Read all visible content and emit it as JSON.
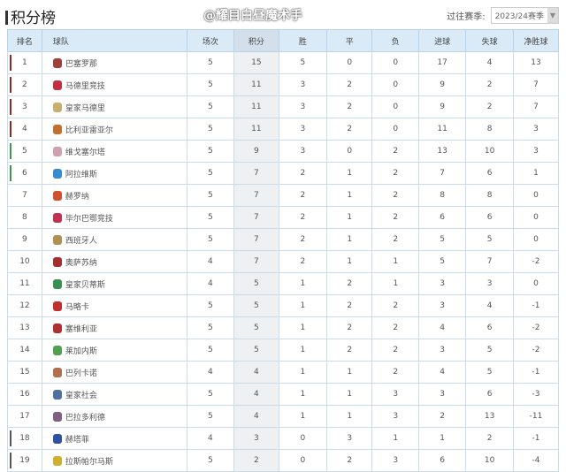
{
  "title": "积分榜",
  "season": {
    "label": "过往赛季:",
    "selected": "2023/24赛季"
  },
  "columns": [
    "排名",
    "球队",
    "场次",
    "积分",
    "胜",
    "平",
    "负",
    "进球",
    "失球",
    "净胜球"
  ],
  "zone_colors": {
    "champions": "#8b2a1e",
    "europa": "#3a9a4a",
    "relegation": "#555555"
  },
  "rows": [
    {
      "rank": "1",
      "team": "巴塞罗那",
      "p": "5",
      "pts": "15",
      "w": "5",
      "d": "0",
      "l": "0",
      "gf": "17",
      "ga": "4",
      "gd": "13",
      "zone": "champions",
      "logo": "#a0403a"
    },
    {
      "rank": "2",
      "team": "马德里竞技",
      "p": "5",
      "pts": "11",
      "w": "3",
      "d": "2",
      "l": "0",
      "gf": "9",
      "ga": "2",
      "gd": "7",
      "zone": "champions",
      "logo": "#c03040"
    },
    {
      "rank": "3",
      "team": "皇家马德里",
      "p": "5",
      "pts": "11",
      "w": "3",
      "d": "2",
      "l": "0",
      "gf": "9",
      "ga": "2",
      "gd": "7",
      "zone": "champions",
      "logo": "#c8b070"
    },
    {
      "rank": "4",
      "team": "比利亚雷亚尔",
      "p": "5",
      "pts": "11",
      "w": "3",
      "d": "2",
      "l": "0",
      "gf": "11",
      "ga": "8",
      "gd": "3",
      "zone": "champions",
      "logo": "#c07030"
    },
    {
      "rank": "5",
      "team": "维戈塞尔塔",
      "p": "5",
      "pts": "9",
      "w": "3",
      "d": "0",
      "l": "2",
      "gf": "13",
      "ga": "10",
      "gd": "3",
      "zone": "europa",
      "logo": "#d0a0b0"
    },
    {
      "rank": "6",
      "team": "阿拉维斯",
      "p": "5",
      "pts": "7",
      "w": "2",
      "d": "1",
      "l": "2",
      "gf": "7",
      "ga": "6",
      "gd": "1",
      "zone": "europa",
      "logo": "#3a8ad0"
    },
    {
      "rank": "7",
      "team": "赫罗纳",
      "p": "5",
      "pts": "7",
      "w": "2",
      "d": "1",
      "l": "2",
      "gf": "8",
      "ga": "8",
      "gd": "0",
      "zone": "",
      "logo": "#d05030"
    },
    {
      "rank": "8",
      "team": "毕尔巴鄂竞技",
      "p": "5",
      "pts": "7",
      "w": "2",
      "d": "1",
      "l": "2",
      "gf": "6",
      "ga": "6",
      "gd": "0",
      "zone": "",
      "logo": "#c03050"
    },
    {
      "rank": "9",
      "team": "西班牙人",
      "p": "5",
      "pts": "7",
      "w": "2",
      "d": "1",
      "l": "2",
      "gf": "5",
      "ga": "5",
      "gd": "0",
      "zone": "",
      "logo": "#b09050"
    },
    {
      "rank": "10",
      "team": "奥萨苏纳",
      "p": "4",
      "pts": "7",
      "w": "2",
      "d": "1",
      "l": "1",
      "gf": "5",
      "ga": "7",
      "gd": "-2",
      "zone": "",
      "logo": "#a03030"
    },
    {
      "rank": "11",
      "team": "皇家贝蒂斯",
      "p": "4",
      "pts": "5",
      "w": "1",
      "d": "2",
      "l": "1",
      "gf": "3",
      "ga": "3",
      "gd": "0",
      "zone": "",
      "logo": "#3a9050"
    },
    {
      "rank": "12",
      "team": "马略卡",
      "p": "5",
      "pts": "5",
      "w": "1",
      "d": "2",
      "l": "2",
      "gf": "3",
      "ga": "4",
      "gd": "-1",
      "zone": "",
      "logo": "#c03030"
    },
    {
      "rank": "13",
      "team": "塞维利亚",
      "p": "5",
      "pts": "5",
      "w": "1",
      "d": "2",
      "l": "2",
      "gf": "4",
      "ga": "6",
      "gd": "-2",
      "zone": "",
      "logo": "#b03030"
    },
    {
      "rank": "14",
      "team": "莱加内斯",
      "p": "5",
      "pts": "5",
      "w": "1",
      "d": "2",
      "l": "2",
      "gf": "3",
      "ga": "5",
      "gd": "-2",
      "zone": "",
      "logo": "#50a050"
    },
    {
      "rank": "15",
      "team": "巴列卡诺",
      "p": "4",
      "pts": "4",
      "w": "1",
      "d": "1",
      "l": "2",
      "gf": "4",
      "ga": "5",
      "gd": "-1",
      "zone": "",
      "logo": "#b07050"
    },
    {
      "rank": "16",
      "team": "皇家社会",
      "p": "5",
      "pts": "4",
      "w": "1",
      "d": "1",
      "l": "3",
      "gf": "3",
      "ga": "6",
      "gd": "-3",
      "zone": "",
      "logo": "#5070a0"
    },
    {
      "rank": "17",
      "team": "巴拉多利德",
      "p": "5",
      "pts": "4",
      "w": "1",
      "d": "1",
      "l": "3",
      "gf": "2",
      "ga": "13",
      "gd": "-11",
      "zone": "",
      "logo": "#806080"
    },
    {
      "rank": "18",
      "team": "赫塔菲",
      "p": "4",
      "pts": "3",
      "w": "0",
      "d": "3",
      "l": "1",
      "gf": "1",
      "ga": "2",
      "gd": "-1",
      "zone": "relegation",
      "logo": "#3050a0"
    },
    {
      "rank": "19",
      "team": "拉斯帕尔马斯",
      "p": "5",
      "pts": "2",
      "w": "0",
      "d": "2",
      "l": "3",
      "gf": "6",
      "ga": "10",
      "gd": "-4",
      "zone": "relegation",
      "logo": "#d0b030"
    }
  ],
  "watermark": "@耀目白昼魔术手"
}
